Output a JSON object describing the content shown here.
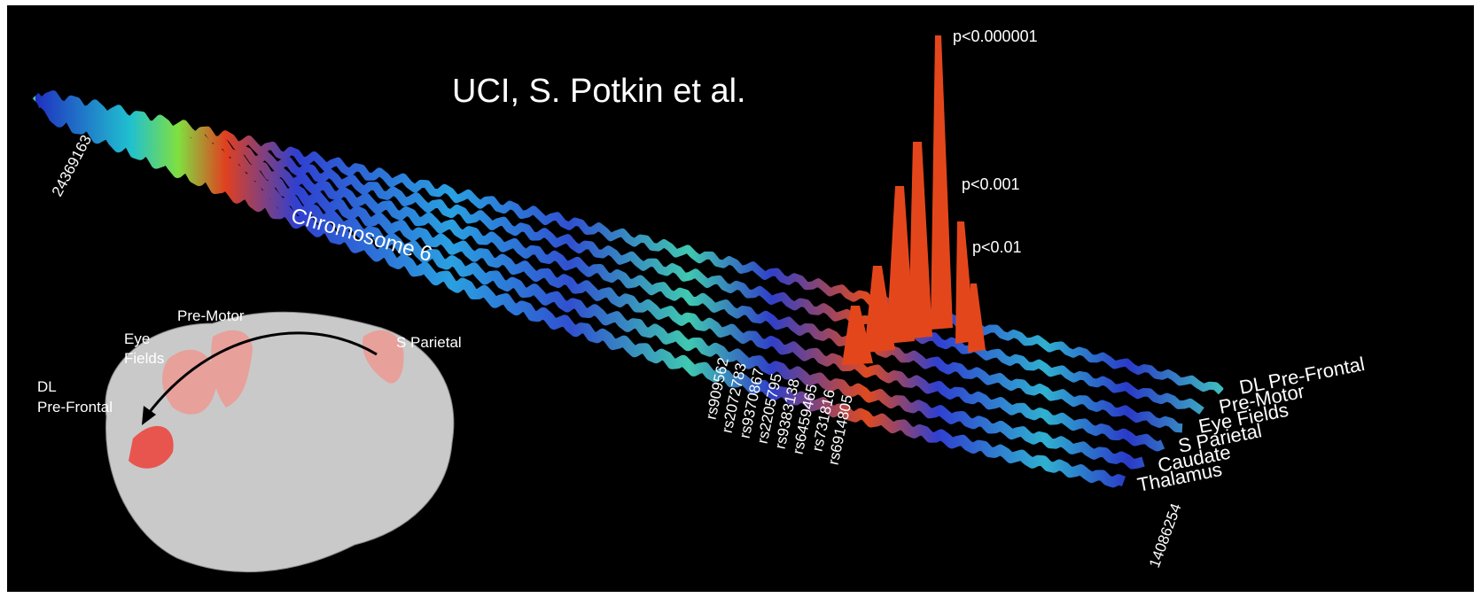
{
  "title": "UCI, S. Potkin et al.",
  "significance_labels": [
    "p<0.000001",
    "p<0.001",
    "p<0.01"
  ],
  "chromosome_label": "Chromosome 6",
  "positions": {
    "start": "24369163",
    "end": "14086254"
  },
  "snps": [
    "rs909562",
    "rs2072783",
    "rs9370867",
    "rs2205795",
    "rs9383138",
    "rs6459465",
    "rs731816",
    "rs6914805"
  ],
  "regions": [
    "DL Pre-Frontal",
    "Pre-Motor",
    "Eye Fields",
    "S Parietal",
    "Caudate",
    "Thalamus"
  ],
  "brain_labels": {
    "dl_prefrontal": [
      "DL",
      "Pre-Frontal"
    ],
    "eye_fields": [
      "Eye",
      "Fields"
    ],
    "pre_motor": "Pre-Motor",
    "s_parietal": "S Parietal"
  }
}
